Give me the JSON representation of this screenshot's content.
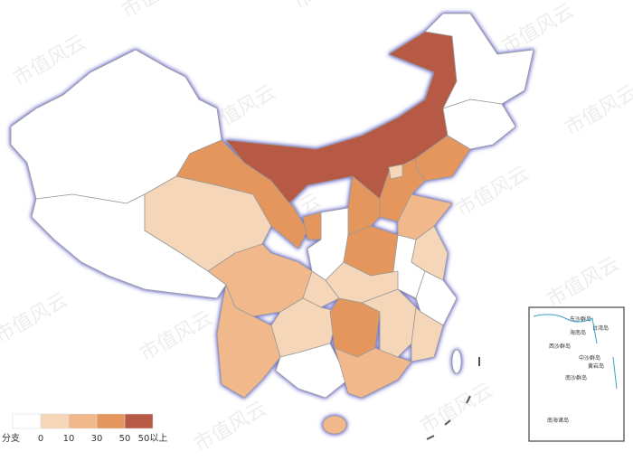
{
  "legend": {
    "title": "分支",
    "colors": [
      "#ffffff",
      "#f6d6b9",
      "#f1b98b",
      "#e4965d",
      "#b65a45"
    ],
    "labels": [
      "0",
      "10",
      "30",
      "50",
      "50以上"
    ]
  },
  "watermark": "市值风云",
  "inset": {
    "labels": [
      "东沙群岛",
      "台湾岛",
      "西沙群岛",
      "海南岛",
      "中沙群岛",
      "黄岩岛",
      "南沙群岛",
      "南海诸岛"
    ]
  }
}
